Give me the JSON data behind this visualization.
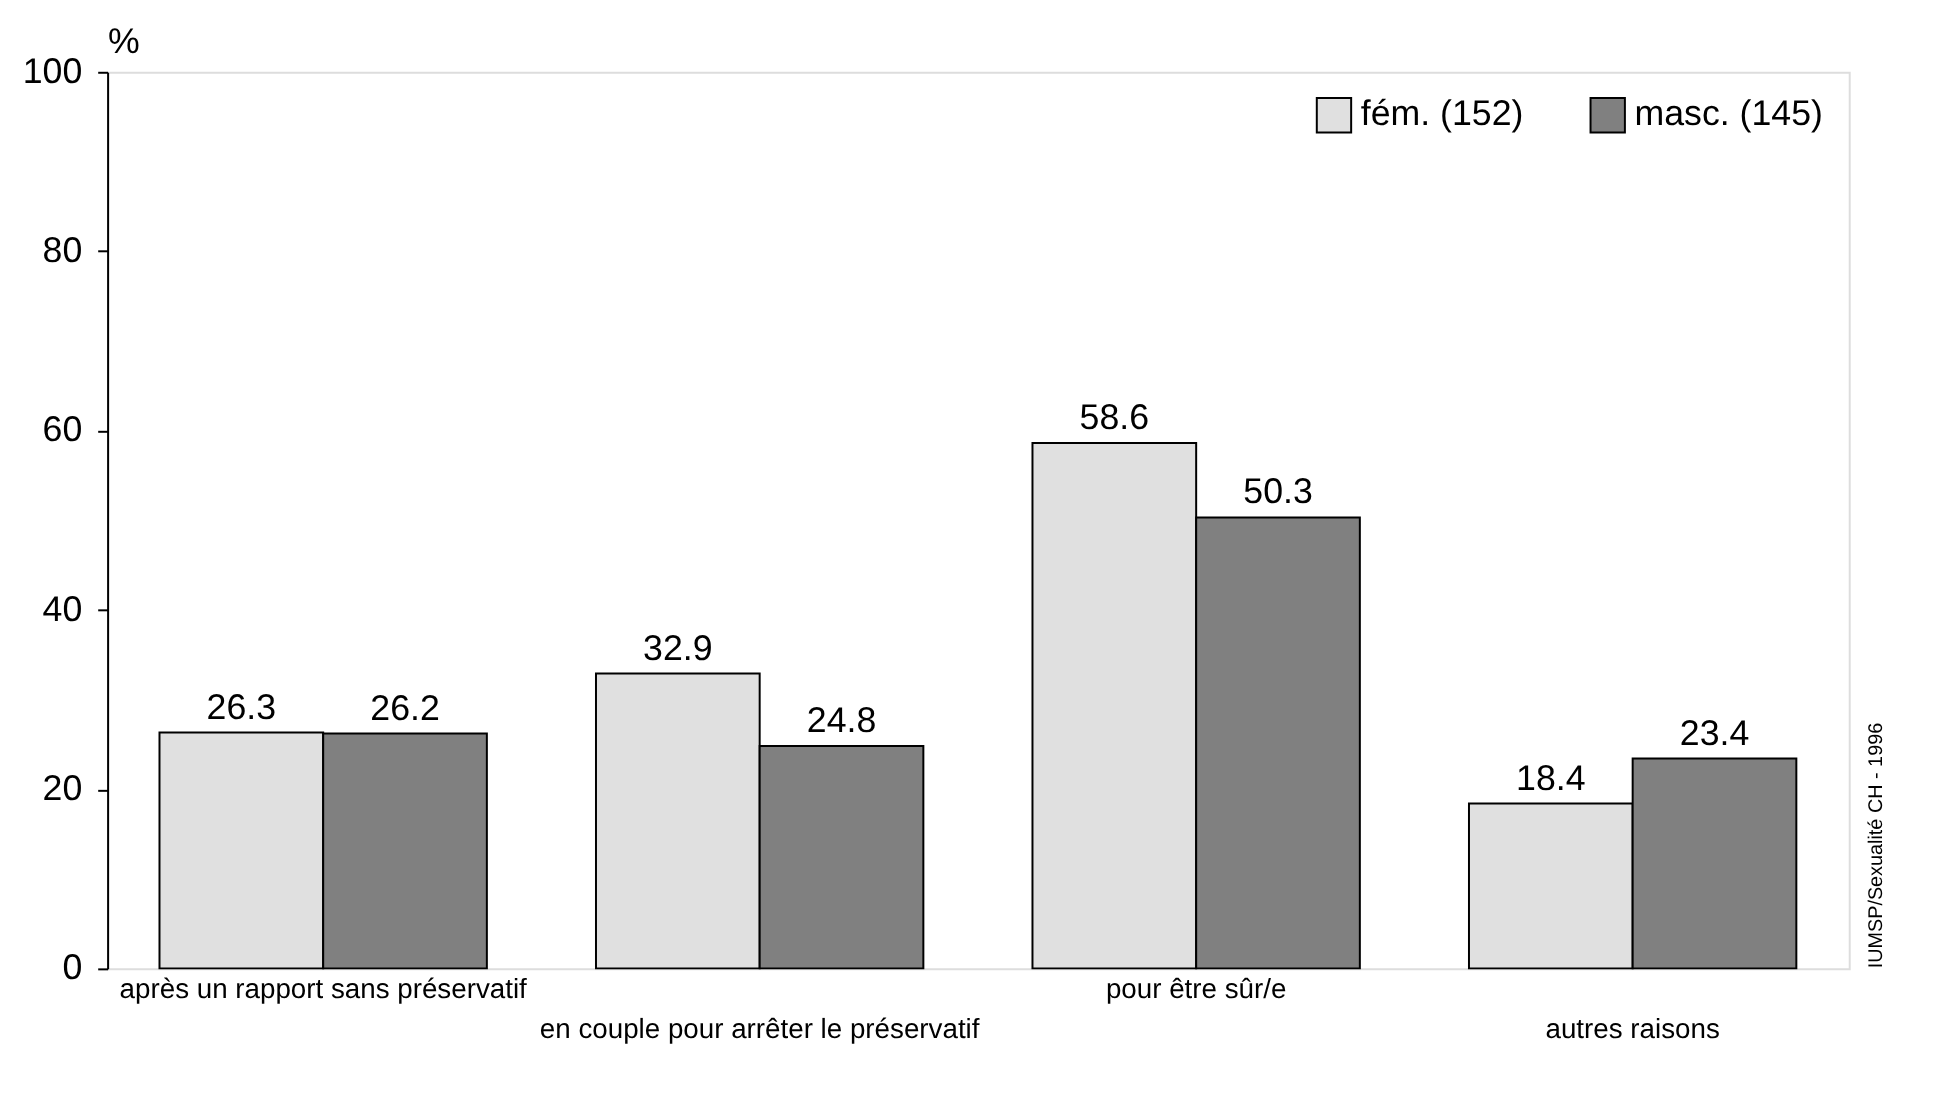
{
  "chart_data": {
    "type": "bar",
    "ylabel": "%",
    "categories": [
      "après un rapport sans préservatif",
      "en couple pour arrêter le préservatif",
      "pour être sûr/e",
      "autres raisons"
    ],
    "series": [
      {
        "name": "fém. (152)",
        "color": "#e0e0e0",
        "values": [
          26.3,
          32.9,
          58.6,
          18.4
        ]
      },
      {
        "name": "masc. (145)",
        "color": "#808080",
        "values": [
          26.2,
          24.8,
          50.3,
          23.4
        ]
      }
    ],
    "ylim": [
      0,
      100
    ],
    "yticks": [
      0,
      20,
      40,
      60,
      80,
      100
    ],
    "grid": false,
    "legend": "top right",
    "data_labels": true,
    "annotations": [
      "IUMSP/Sexualité CH - 1996"
    ]
  }
}
